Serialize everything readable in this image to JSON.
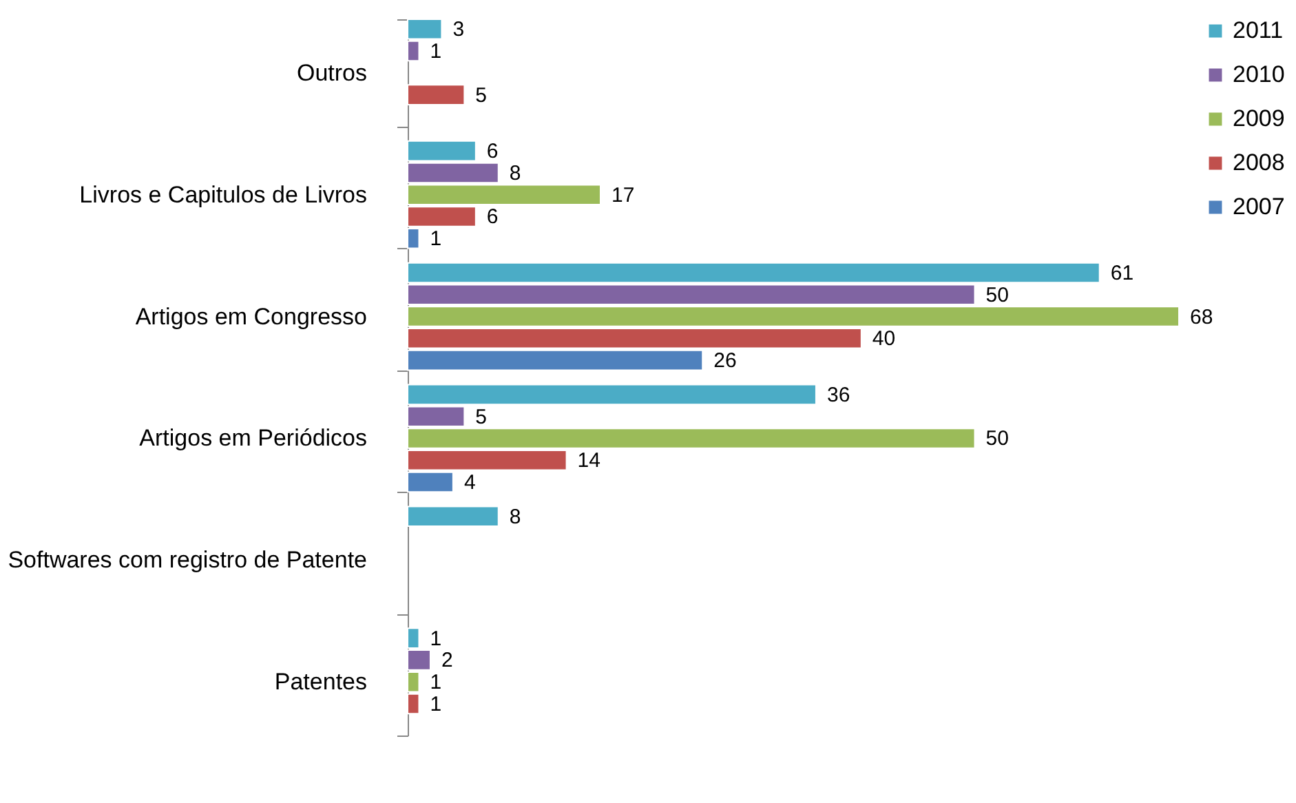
{
  "chart_data": {
    "type": "bar",
    "orientation": "horizontal",
    "data_labels": true,
    "legend": "right",
    "grid": false,
    "categories": [
      "Outros",
      "Livros e Capitulos de Livros",
      "Artigos em Congresso",
      "Artigos em Periódicos",
      "Softwares com registro de Patente",
      "Patentes"
    ],
    "series": [
      {
        "name": "2011",
        "color": "#4bacc6",
        "values": [
          3,
          6,
          61,
          36,
          8,
          1
        ]
      },
      {
        "name": "2010",
        "color": "#8064a2",
        "values": [
          1,
          8,
          50,
          5,
          null,
          2
        ]
      },
      {
        "name": "2009",
        "color": "#9bbb59",
        "values": [
          null,
          17,
          68,
          50,
          null,
          1
        ]
      },
      {
        "name": "2008",
        "color": "#c0504d",
        "values": [
          5,
          6,
          40,
          14,
          null,
          1
        ]
      },
      {
        "name": "2007",
        "color": "#4f81bd",
        "values": [
          null,
          1,
          26,
          4,
          null,
          null
        ]
      }
    ]
  }
}
